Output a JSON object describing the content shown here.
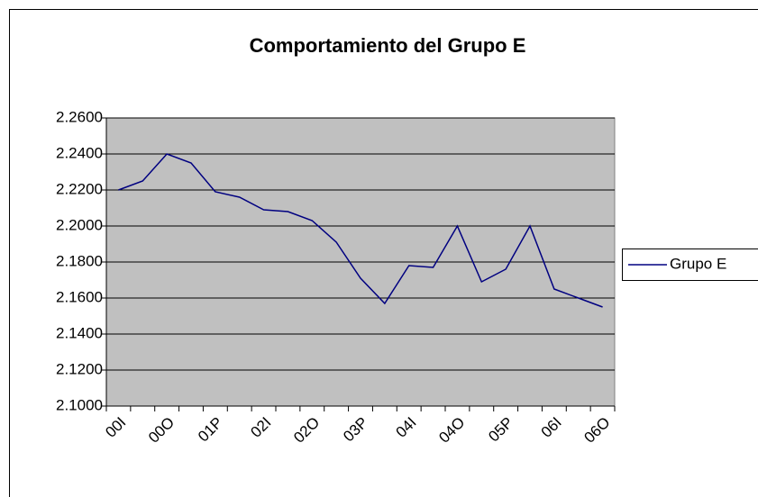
{
  "chart_data": {
    "type": "line",
    "title": "Comportamiento del Grupo E",
    "categories": [
      "00I",
      null,
      "00O",
      null,
      "01P",
      null,
      "02I",
      null,
      "02O",
      null,
      "03P",
      null,
      "04I",
      null,
      "04O",
      null,
      "05P",
      null,
      "06I",
      null,
      "06O"
    ],
    "series": [
      {
        "name": "Grupo E",
        "color": "#000080",
        "values": [
          2.22,
          2.225,
          2.24,
          2.235,
          2.219,
          2.216,
          2.209,
          2.208,
          2.203,
          2.191,
          2.171,
          2.157,
          2.178,
          2.177,
          2.2,
          2.169,
          2.176,
          2.2,
          2.165,
          2.16,
          2.155
        ]
      }
    ],
    "ylim": [
      2.1,
      2.26
    ],
    "yticks": [
      {
        "value": 2.1,
        "label": "2.1000"
      },
      {
        "value": 2.12,
        "label": "2.1200"
      },
      {
        "value": 2.14,
        "label": "2.1400"
      },
      {
        "value": 2.16,
        "label": "2.1600"
      },
      {
        "value": 2.18,
        "label": "2.1800"
      },
      {
        "value": 2.2,
        "label": "2.2000"
      },
      {
        "value": 2.22,
        "label": "2.2200"
      },
      {
        "value": 2.24,
        "label": "2.2400"
      },
      {
        "value": 2.26,
        "label": "2.2600"
      }
    ],
    "grid": true,
    "legend": "right",
    "plot_background": "#c0c0c0"
  }
}
